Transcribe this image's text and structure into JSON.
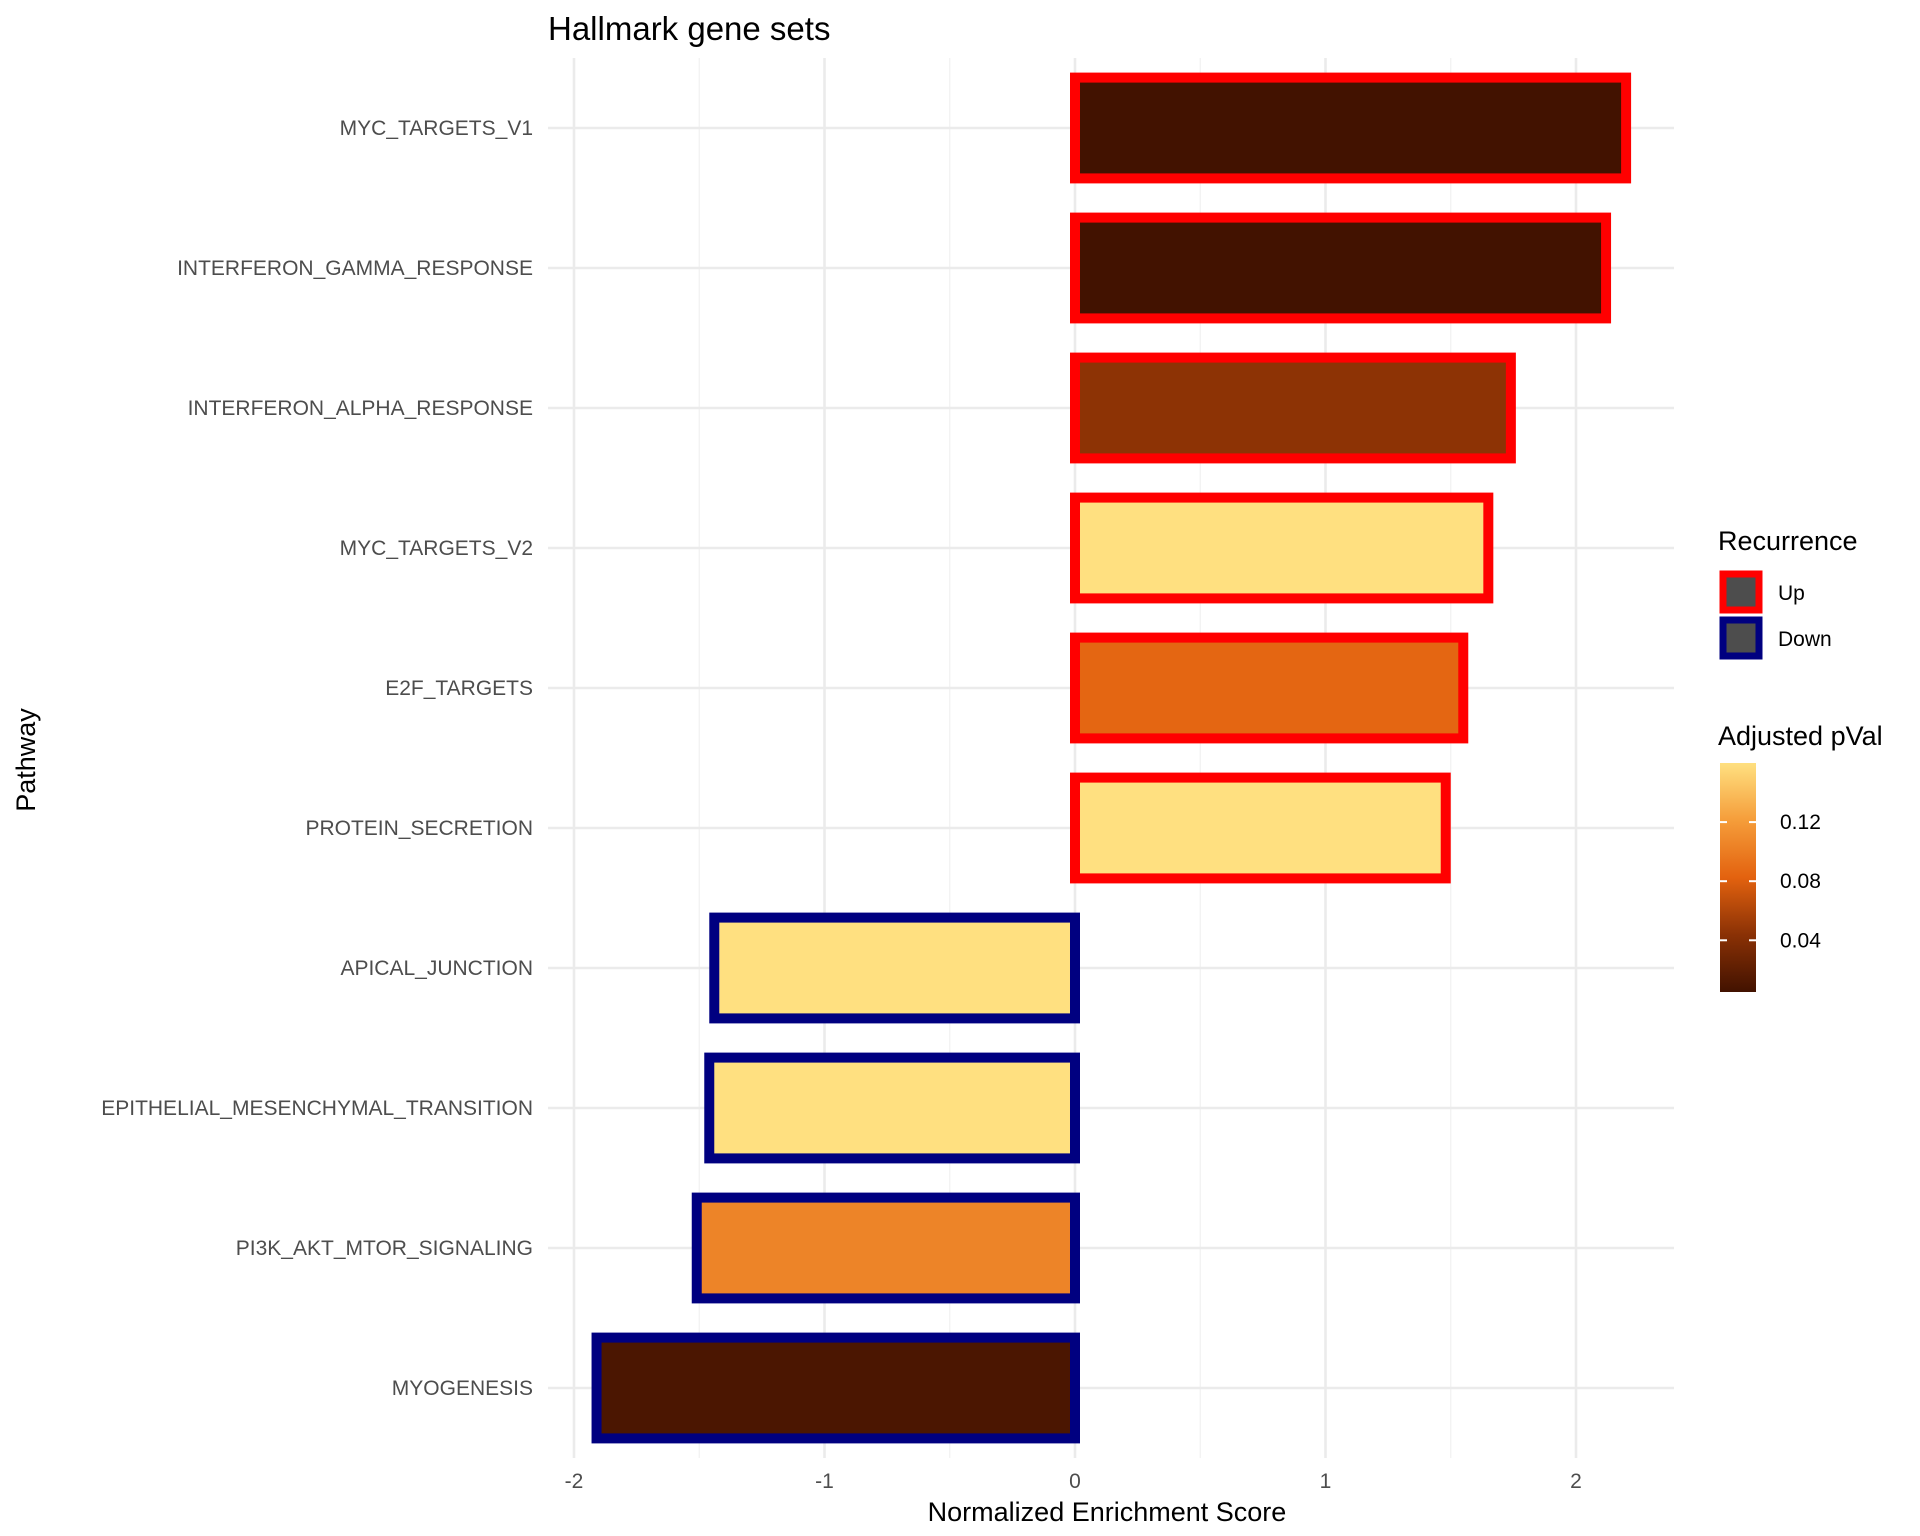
{
  "chart_data": {
    "type": "bar",
    "orientation": "horizontal",
    "title": "Hallmark gene sets",
    "xlabel": "Normalized Enrichment Score",
    "ylabel": "Pathway",
    "xlim": [
      -2.05,
      2.4
    ],
    "xticks": [
      -2,
      -1,
      0,
      1,
      2
    ],
    "xtick_labels": [
      "-2",
      "-1",
      "0",
      "1",
      "2"
    ],
    "grid": true,
    "categories": [
      "MYC_TARGETS_V1",
      "INTERFERON_GAMMA_RESPONSE",
      "INTERFERON_ALPHA_RESPONSE",
      "MYC_TARGETS_V2",
      "E2F_TARGETS",
      "PROTEIN_SECRETION",
      "APICAL_JUNCTION",
      "EPITHELIAL_MESENCHYMAL_TRANSITION",
      "PI3K_AKT_MTOR_SIGNALING",
      "MYOGENESIS"
    ],
    "values": [
      2.2,
      2.12,
      1.74,
      1.65,
      1.55,
      1.48,
      -1.44,
      -1.46,
      -1.51,
      -1.91
    ],
    "adjusted_pval": [
      0.005,
      0.005,
      0.045,
      0.16,
      0.085,
      0.16,
      0.16,
      0.16,
      0.105,
      0.01
    ],
    "recurrence": [
      "Up",
      "Up",
      "Up",
      "Up",
      "Up",
      "Up",
      "Down",
      "Down",
      "Down",
      "Down"
    ],
    "recurrence_colors": {
      "Up": "#ff0000",
      "Down": "#000080"
    },
    "legends": {
      "placement": "right",
      "recurrence": {
        "title": "Recurrence",
        "items": [
          {
            "label": "Up",
            "color": "#ff0000"
          },
          {
            "label": "Down",
            "color": "#000080"
          }
        ],
        "key_fill": "#4d4d4d"
      },
      "pval": {
        "title": "Adjusted pVal",
        "range": [
          0.005,
          0.16
        ],
        "ticks": [
          0.04,
          0.08,
          0.12
        ],
        "tick_labels": [
          "0.04",
          "0.08",
          "0.12"
        ],
        "colors": [
          "#421200",
          "#8a3105",
          "#e3620f",
          "#f59d3a",
          "#ffe080"
        ]
      }
    }
  }
}
